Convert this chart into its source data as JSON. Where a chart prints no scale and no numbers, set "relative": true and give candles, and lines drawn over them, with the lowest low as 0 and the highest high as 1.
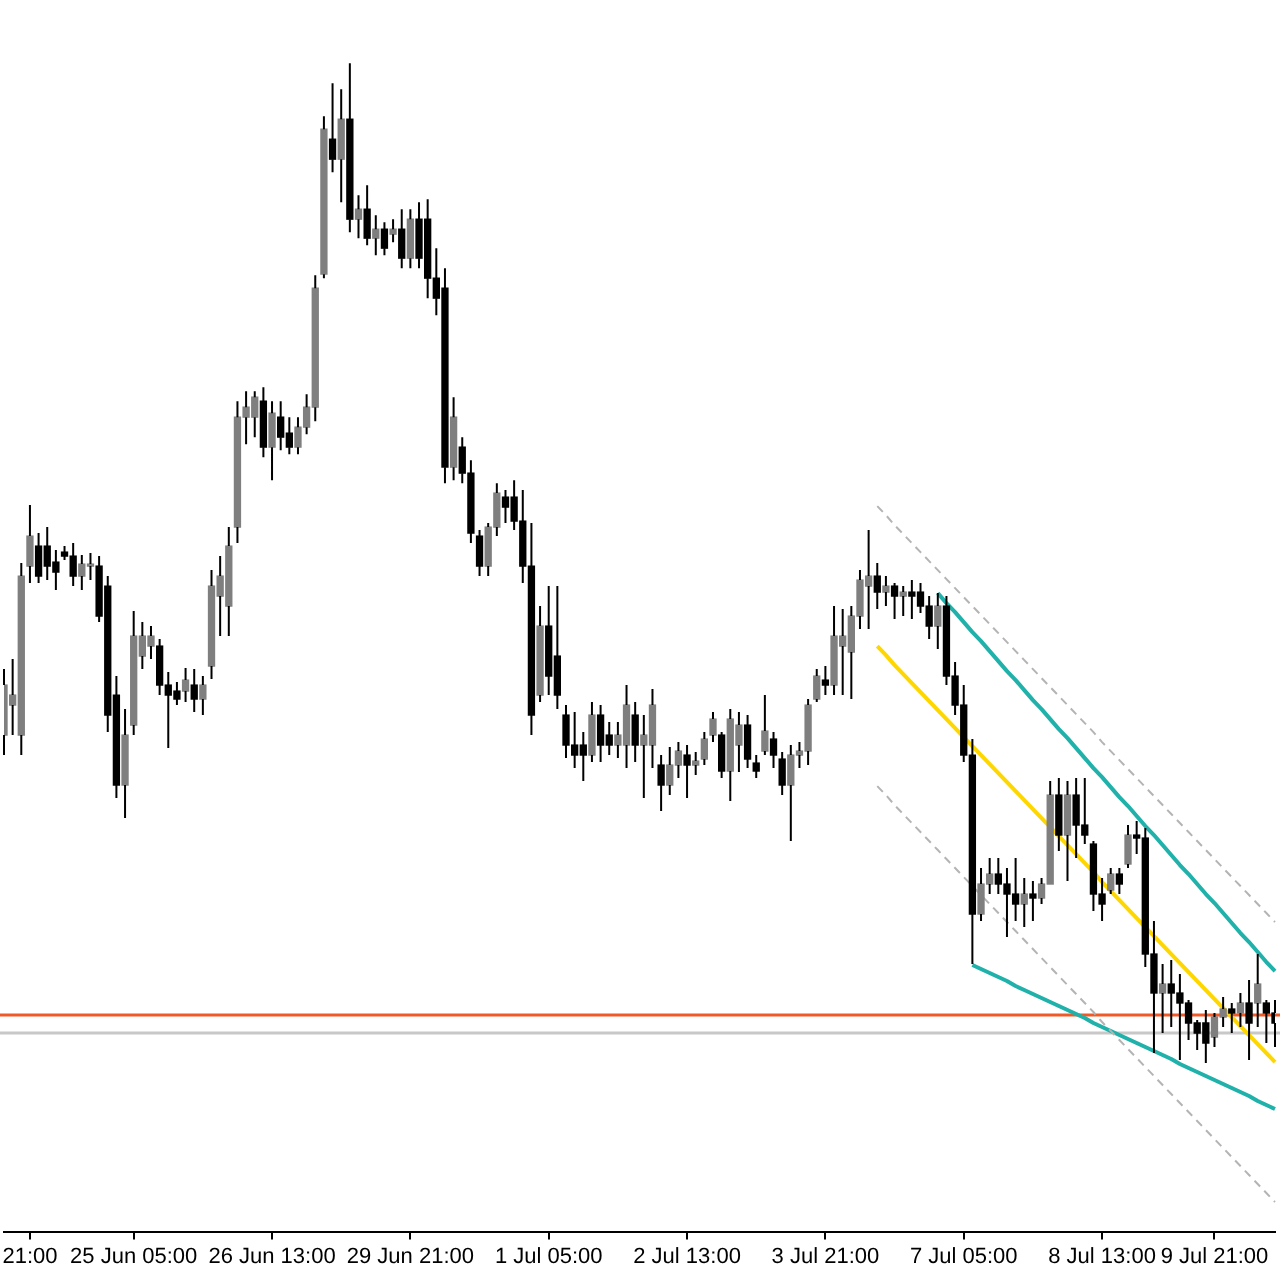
{
  "chart_data": {
    "type": "candlestick",
    "relative": true,
    "color": "#000000",
    "categories": [
      null,
      null,
      null,
      "21:00",
      null,
      null,
      null,
      null,
      null,
      null,
      null,
      null,
      null,
      null,
      null,
      "25 Jun 05:00",
      null,
      null,
      null,
      null,
      null,
      null,
      null,
      null,
      null,
      null,
      null,
      null,
      null,
      null,
      null,
      "26 Jun 13:00",
      null,
      null,
      null,
      null,
      null,
      null,
      null,
      null,
      null,
      null,
      null,
      null,
      null,
      null,
      null,
      "29 Jun 21:00",
      null,
      null,
      null,
      null,
      null,
      null,
      null,
      null,
      null,
      null,
      null,
      null,
      null,
      null,
      null,
      "1 Jul 05:00",
      null,
      null,
      null,
      null,
      null,
      null,
      null,
      null,
      null,
      null,
      null,
      null,
      null,
      null,
      null,
      "2 Jul 13:00",
      null,
      null,
      null,
      null,
      null,
      null,
      null,
      null,
      null,
      null,
      null,
      null,
      null,
      null,
      null,
      "3 Jul 21:00",
      null,
      null,
      null,
      null,
      null,
      null,
      null,
      null,
      null,
      null,
      null,
      null,
      null,
      null,
      null,
      "7 Jul 05:00",
      null,
      null,
      null,
      null,
      null,
      null,
      null,
      null,
      null,
      null,
      null,
      null,
      null,
      null,
      null,
      "8 Jul 13:00",
      null,
      null,
      null,
      null,
      null,
      null,
      null,
      null,
      null,
      null,
      null,
      null,
      "9 Jul 21:00",
      null,
      null,
      null,
      null,
      null,
      null,
      null
    ],
    "ohlc": [
      [
        0.328,
        0.394,
        0.308,
        0.378
      ],
      [
        0.358,
        0.404,
        0.328,
        0.368
      ],
      [
        0.328,
        0.5,
        0.308,
        0.487
      ],
      [
        0.497,
        0.558,
        0.48,
        0.527
      ],
      [
        0.517,
        0.53,
        0.48,
        0.487
      ],
      [
        0.517,
        0.536,
        0.483,
        0.497
      ],
      [
        0.501,
        0.513,
        0.473,
        0.491
      ],
      [
        0.511,
        0.517,
        0.503,
        0.507
      ],
      [
        0.507,
        0.52,
        0.477,
        0.487
      ],
      [
        0.487,
        0.508,
        0.473,
        0.499
      ],
      [
        0.497,
        0.51,
        0.483,
        0.499
      ],
      [
        0.497,
        0.507,
        0.441,
        0.447
      ],
      [
        0.477,
        0.487,
        0.331,
        0.348
      ],
      [
        0.368,
        0.387,
        0.265,
        0.278
      ],
      [
        0.278,
        0.354,
        0.245,
        0.328
      ],
      [
        0.338,
        0.452,
        0.328,
        0.427
      ],
      [
        0.407,
        0.441,
        0.394,
        0.427
      ],
      [
        0.417,
        0.437,
        0.404,
        0.427
      ],
      [
        0.417,
        0.424,
        0.368,
        0.378
      ],
      [
        0.378,
        0.391,
        0.315,
        0.368
      ],
      [
        0.372,
        0.381,
        0.358,
        0.364
      ],
      [
        0.372,
        0.395,
        0.361,
        0.383
      ],
      [
        0.378,
        0.394,
        0.351,
        0.364
      ],
      [
        0.364,
        0.387,
        0.348,
        0.378
      ],
      [
        0.397,
        0.493,
        0.384,
        0.477
      ],
      [
        0.467,
        0.507,
        0.427,
        0.487
      ],
      [
        0.457,
        0.536,
        0.427,
        0.517
      ],
      [
        0.536,
        0.662,
        0.52,
        0.646
      ],
      [
        0.646,
        0.672,
        0.619,
        0.656
      ],
      [
        0.646,
        0.672,
        0.626,
        0.666
      ],
      [
        0.662,
        0.676,
        0.606,
        0.616
      ],
      [
        0.616,
        0.662,
        0.583,
        0.65
      ],
      [
        0.646,
        0.662,
        0.613,
        0.626
      ],
      [
        0.63,
        0.646,
        0.609,
        0.616
      ],
      [
        0.616,
        0.646,
        0.609,
        0.636
      ],
      [
        0.636,
        0.669,
        0.629,
        0.656
      ],
      [
        0.656,
        0.788,
        0.642,
        0.775
      ],
      [
        0.789,
        0.947,
        0.785,
        0.934
      ],
      [
        0.924,
        0.98,
        0.891,
        0.904
      ],
      [
        0.904,
        0.974,
        0.861,
        0.944
      ],
      [
        0.944,
        1.0,
        0.831,
        0.844
      ],
      [
        0.844,
        0.868,
        0.825,
        0.854
      ],
      [
        0.854,
        0.878,
        0.818,
        0.825
      ],
      [
        0.825,
        0.848,
        0.808,
        0.834
      ],
      [
        0.834,
        0.841,
        0.808,
        0.815
      ],
      [
        0.829,
        0.844,
        0.821,
        0.834
      ],
      [
        0.834,
        0.854,
        0.795,
        0.805
      ],
      [
        0.805,
        0.854,
        0.795,
        0.844
      ],
      [
        0.844,
        0.861,
        0.795,
        0.805
      ],
      [
        0.844,
        0.864,
        0.765,
        0.785
      ],
      [
        0.785,
        0.815,
        0.748,
        0.765
      ],
      [
        0.775,
        0.795,
        0.58,
        0.596
      ],
      [
        0.596,
        0.666,
        0.583,
        0.646
      ],
      [
        0.616,
        0.626,
        0.58,
        0.59
      ],
      [
        0.59,
        0.603,
        0.52,
        0.53
      ],
      [
        0.527,
        0.533,
        0.487,
        0.497
      ],
      [
        0.497,
        0.54,
        0.487,
        0.536
      ],
      [
        0.536,
        0.58,
        0.527,
        0.57
      ],
      [
        0.566,
        0.573,
        0.54,
        0.556
      ],
      [
        0.566,
        0.583,
        0.533,
        0.542
      ],
      [
        0.542,
        0.573,
        0.48,
        0.497
      ],
      [
        0.497,
        0.54,
        0.328,
        0.348
      ],
      [
        0.368,
        0.457,
        0.361,
        0.437
      ],
      [
        0.437,
        0.477,
        0.368,
        0.387
      ],
      [
        0.407,
        0.477,
        0.354,
        0.368
      ],
      [
        0.348,
        0.358,
        0.305,
        0.318
      ],
      [
        0.318,
        0.351,
        0.295,
        0.308
      ],
      [
        0.318,
        0.331,
        0.282,
        0.308
      ],
      [
        0.308,
        0.361,
        0.301,
        0.348
      ],
      [
        0.348,
        0.358,
        0.301,
        0.318
      ],
      [
        0.328,
        0.341,
        0.308,
        0.318
      ],
      [
        0.318,
        0.341,
        0.305,
        0.328
      ],
      [
        0.318,
        0.378,
        0.295,
        0.358
      ],
      [
        0.348,
        0.361,
        0.301,
        0.318
      ],
      [
        0.318,
        0.348,
        0.265,
        0.328
      ],
      [
        0.318,
        0.374,
        0.295,
        0.358
      ],
      [
        0.298,
        0.308,
        0.252,
        0.278
      ],
      [
        0.278,
        0.316,
        0.268,
        0.298
      ],
      [
        0.298,
        0.321,
        0.285,
        0.312
      ],
      [
        0.308,
        0.318,
        0.265,
        0.298
      ],
      [
        0.298,
        0.311,
        0.288,
        0.302
      ],
      [
        0.304,
        0.331,
        0.298,
        0.324
      ],
      [
        0.328,
        0.351,
        0.321,
        0.344
      ],
      [
        0.328,
        0.331,
        0.285,
        0.292
      ],
      [
        0.292,
        0.354,
        0.262,
        0.344
      ],
      [
        0.318,
        0.351,
        0.291,
        0.338
      ],
      [
        0.338,
        0.348,
        0.295,
        0.304
      ],
      [
        0.3,
        0.308,
        0.285,
        0.292
      ],
      [
        0.312,
        0.368,
        0.308,
        0.332
      ],
      [
        0.324,
        0.331,
        0.295,
        0.308
      ],
      [
        0.304,
        0.311,
        0.268,
        0.278
      ],
      [
        0.278,
        0.318,
        0.222,
        0.308
      ],
      [
        0.308,
        0.321,
        0.295,
        0.312
      ],
      [
        0.312,
        0.364,
        0.298,
        0.358
      ],
      [
        0.364,
        0.394,
        0.361,
        0.387
      ],
      [
        0.383,
        0.397,
        0.368,
        0.378
      ],
      [
        0.378,
        0.457,
        0.368,
        0.427
      ],
      [
        0.417,
        0.454,
        0.368,
        0.427
      ],
      [
        0.411,
        0.457,
        0.364,
        0.447
      ],
      [
        0.447,
        0.493,
        0.434,
        0.483
      ],
      [
        0.477,
        0.533,
        0.434,
        0.487
      ],
      [
        0.487,
        0.5,
        0.454,
        0.471
      ],
      [
        0.471,
        0.487,
        0.457,
        0.477
      ],
      [
        0.477,
        0.48,
        0.444,
        0.467
      ],
      [
        0.467,
        0.477,
        0.447,
        0.471
      ],
      [
        0.471,
        0.483,
        0.444,
        0.467
      ],
      [
        0.471,
        0.48,
        0.45,
        0.457
      ],
      [
        0.457,
        0.467,
        0.424,
        0.437
      ],
      [
        0.437,
        0.47,
        0.414,
        0.457
      ],
      [
        0.457,
        0.467,
        0.378,
        0.387
      ],
      [
        0.387,
        0.401,
        0.348,
        0.358
      ],
      [
        0.358,
        0.378,
        0.301,
        0.308
      ],
      [
        0.308,
        0.324,
        0.099,
        0.149
      ],
      [
        0.149,
        0.195,
        0.142,
        0.179
      ],
      [
        0.179,
        0.205,
        0.169,
        0.189
      ],
      [
        0.189,
        0.205,
        0.169,
        0.179
      ],
      [
        0.179,
        0.195,
        0.126,
        0.169
      ],
      [
        0.169,
        0.205,
        0.142,
        0.159
      ],
      [
        0.159,
        0.185,
        0.136,
        0.169
      ],
      [
        0.169,
        0.182,
        0.142,
        0.165
      ],
      [
        0.165,
        0.185,
        0.159,
        0.179
      ],
      [
        0.179,
        0.282,
        0.179,
        0.268
      ],
      [
        0.268,
        0.285,
        0.212,
        0.228
      ],
      [
        0.228,
        0.282,
        0.182,
        0.268
      ],
      [
        0.268,
        0.285,
        0.205,
        0.238
      ],
      [
        0.238,
        0.285,
        0.219,
        0.228
      ],
      [
        0.219,
        0.222,
        0.152,
        0.169
      ],
      [
        0.169,
        0.185,
        0.142,
        0.159
      ],
      [
        0.173,
        0.195,
        0.169,
        0.189
      ],
      [
        0.189,
        0.195,
        0.169,
        0.179
      ],
      [
        0.199,
        0.238,
        0.195,
        0.228
      ],
      [
        0.228,
        0.242,
        0.209,
        0.225
      ],
      [
        0.225,
        0.235,
        0.096,
        0.109
      ],
      [
        0.109,
        0.142,
        0.01,
        0.07
      ],
      [
        0.07,
        0.099,
        0.03,
        0.079
      ],
      [
        0.079,
        0.103,
        0.036,
        0.07
      ],
      [
        0.07,
        0.089,
        0.003,
        0.06
      ],
      [
        0.06,
        0.063,
        0.023,
        0.04
      ],
      [
        0.04,
        0.043,
        0.013,
        0.03
      ],
      [
        0.04,
        0.053,
        0.0,
        0.02
      ],
      [
        0.026,
        0.05,
        0.016,
        0.046
      ],
      [
        0.046,
        0.066,
        0.036,
        0.054
      ],
      [
        0.054,
        0.06,
        0.03,
        0.05
      ],
      [
        0.05,
        0.07,
        0.036,
        0.06
      ],
      [
        0.06,
        0.083,
        0.003,
        0.04
      ],
      [
        0.06,
        0.109,
        0.036,
        0.079
      ],
      [
        0.06,
        0.063,
        0.02,
        0.05
      ],
      [
        0.05,
        0.063,
        0.016,
        0.04
      ]
    ],
    "colors": [
      "#7f7f7f",
      "#7f7f7f",
      "#7f7f7f",
      "#7f7f7f",
      "#000000",
      "#000000",
      "#000000",
      "#000000",
      "#000000",
      "#7f7f7f",
      "#7f7f7f",
      "#000000",
      "#000000",
      "#000000",
      "#7f7f7f",
      "#7f7f7f",
      "#7f7f7f",
      "#7f7f7f",
      "#000000",
      "#000000",
      "#000000",
      "#7f7f7f",
      "#000000",
      "#7f7f7f",
      "#7f7f7f",
      "#7f7f7f",
      "#7f7f7f",
      "#7f7f7f",
      "#7f7f7f",
      "#7f7f7f",
      "#000000",
      "#7f7f7f",
      "#000000",
      "#000000",
      "#7f7f7f",
      "#7f7f7f",
      "#7f7f7f",
      "#7f7f7f",
      "#000000",
      "#7f7f7f",
      "#000000",
      "#7f7f7f",
      "#000000",
      "#7f7f7f",
      "#000000",
      "#7f7f7f",
      "#000000",
      "#7f7f7f",
      "#000000",
      "#000000",
      "#000000",
      "#000000",
      "#7f7f7f",
      "#000000",
      "#000000",
      "#000000",
      "#7f7f7f",
      "#7f7f7f",
      "#000000",
      "#000000",
      "#000000",
      "#000000",
      "#7f7f7f",
      "#000000",
      "#000000",
      "#000000",
      "#000000",
      "#000000",
      "#7f7f7f",
      "#000000",
      "#000000",
      "#7f7f7f",
      "#7f7f7f",
      "#000000",
      "#7f7f7f",
      "#7f7f7f",
      "#000000",
      "#7f7f7f",
      "#7f7f7f",
      "#000000",
      "#7f7f7f",
      "#7f7f7f",
      "#7f7f7f",
      "#000000",
      "#7f7f7f",
      "#7f7f7f",
      "#000000",
      "#000000",
      "#7f7f7f",
      "#000000",
      "#000000",
      "#7f7f7f",
      "#7f7f7f",
      "#7f7f7f",
      "#7f7f7f",
      "#000000",
      "#7f7f7f",
      "#7f7f7f",
      "#7f7f7f",
      "#7f7f7f",
      "#7f7f7f",
      "#000000",
      "#7f7f7f",
      "#000000",
      "#7f7f7f",
      "#000000",
      "#000000",
      "#000000",
      "#7f7f7f",
      "#000000",
      "#000000",
      "#000000",
      "#000000",
      "#7f7f7f",
      "#7f7f7f",
      "#000000",
      "#000000",
      "#000000",
      "#7f7f7f",
      "#000000",
      "#7f7f7f",
      "#7f7f7f",
      "#000000",
      "#7f7f7f",
      "#000000",
      "#000000",
      "#000000",
      "#000000",
      "#7f7f7f",
      "#000000",
      "#7f7f7f",
      "#000000",
      "#000000",
      "#000000",
      "#7f7f7f",
      "#000000",
      "#000000",
      "#000000",
      "#000000",
      "#000000",
      "#7f7f7f",
      "#7f7f7f",
      "#000000",
      "#7f7f7f",
      "#000000",
      "#7f7f7f",
      "#000000",
      "#000000"
    ],
    "series": [
      {
        "type": "line",
        "color": "#b4b4b4",
        "line_style": "dashed",
        "values": [
          null,
          null,
          null,
          null,
          null,
          null,
          null,
          null,
          null,
          null,
          null,
          null,
          null,
          null,
          null,
          null,
          null,
          null,
          null,
          null,
          null,
          null,
          null,
          null,
          null,
          null,
          null,
          null,
          null,
          null,
          null,
          null,
          null,
          null,
          null,
          null,
          null,
          null,
          null,
          null,
          null,
          null,
          null,
          null,
          null,
          null,
          null,
          null,
          null,
          null,
          null,
          null,
          null,
          null,
          null,
          null,
          null,
          null,
          null,
          null,
          null,
          null,
          null,
          null,
          null,
          null,
          null,
          null,
          null,
          null,
          null,
          null,
          null,
          null,
          null,
          null,
          null,
          null,
          null,
          null,
          null,
          null,
          null,
          null,
          null,
          null,
          null,
          null,
          null,
          null,
          null,
          null,
          null,
          null,
          null,
          null,
          null,
          null,
          null,
          null,
          null,
          0.557,
          0.548,
          0.538,
          0.529,
          0.52,
          0.511,
          0.502,
          0.493,
          0.484,
          0.475,
          0.466,
          0.457,
          0.448,
          0.439,
          0.43,
          0.421,
          0.412,
          0.403,
          0.394,
          0.385,
          0.376,
          0.367,
          0.358,
          0.349,
          0.34,
          0.331,
          0.321,
          0.312,
          0.303,
          0.294,
          0.285,
          0.276,
          0.267,
          0.258,
          0.249,
          0.24,
          0.231,
          0.222,
          0.213,
          0.204,
          0.195,
          0.186,
          0.177,
          0.168,
          0.159,
          0.15,
          0.141
        ]
      },
      {
        "type": "line",
        "color": "#b4b4b4",
        "line_style": "dashed",
        "values": [
          null,
          null,
          null,
          null,
          null,
          null,
          null,
          null,
          null,
          null,
          null,
          null,
          null,
          null,
          null,
          null,
          null,
          null,
          null,
          null,
          null,
          null,
          null,
          null,
          null,
          null,
          null,
          null,
          null,
          null,
          null,
          null,
          null,
          null,
          null,
          null,
          null,
          null,
          null,
          null,
          null,
          null,
          null,
          null,
          null,
          null,
          null,
          null,
          null,
          null,
          null,
          null,
          null,
          null,
          null,
          null,
          null,
          null,
          null,
          null,
          null,
          null,
          null,
          null,
          null,
          null,
          null,
          null,
          null,
          null,
          null,
          null,
          null,
          null,
          null,
          null,
          null,
          null,
          null,
          null,
          null,
          null,
          null,
          null,
          null,
          null,
          null,
          null,
          null,
          null,
          null,
          null,
          null,
          null,
          null,
          null,
          null,
          null,
          null,
          null,
          null,
          0.277,
          0.268,
          0.258,
          0.249,
          0.24,
          0.231,
          0.222,
          0.213,
          0.204,
          0.195,
          0.186,
          0.177,
          0.168,
          0.159,
          0.15,
          0.141,
          0.132,
          0.123,
          0.114,
          0.105,
          0.096,
          0.087,
          0.078,
          0.069,
          0.06,
          0.051,
          0.041,
          0.032,
          0.023,
          0.014,
          0.005,
          -0.004,
          -0.013,
          -0.022,
          -0.031,
          -0.04,
          -0.049,
          -0.058,
          -0.067,
          -0.076,
          -0.085,
          -0.094,
          -0.103,
          -0.112,
          -0.121,
          -0.13,
          -0.139
        ]
      },
      {
        "type": "line",
        "color": "#ffd700",
        "values": [
          null,
          null,
          null,
          null,
          null,
          null,
          null,
          null,
          null,
          null,
          null,
          null,
          null,
          null,
          null,
          null,
          null,
          null,
          null,
          null,
          null,
          null,
          null,
          null,
          null,
          null,
          null,
          null,
          null,
          null,
          null,
          null,
          null,
          null,
          null,
          null,
          null,
          null,
          null,
          null,
          null,
          null,
          null,
          null,
          null,
          null,
          null,
          null,
          null,
          null,
          null,
          null,
          null,
          null,
          null,
          null,
          null,
          null,
          null,
          null,
          null,
          null,
          null,
          null,
          null,
          null,
          null,
          null,
          null,
          null,
          null,
          null,
          null,
          null,
          null,
          null,
          null,
          null,
          null,
          null,
          null,
          null,
          null,
          null,
          null,
          null,
          null,
          null,
          null,
          null,
          null,
          null,
          null,
          null,
          null,
          null,
          null,
          null,
          null,
          null,
          null,
          0.417,
          0.408,
          0.398,
          0.389,
          0.38,
          0.371,
          0.362,
          0.353,
          0.344,
          0.335,
          0.326,
          0.317,
          0.308,
          0.299,
          0.29,
          0.281,
          0.272,
          0.263,
          0.254,
          0.245,
          0.236,
          0.227,
          0.218,
          0.209,
          0.2,
          0.191,
          0.181,
          0.172,
          0.163,
          0.154,
          0.145,
          0.136,
          0.127,
          0.118,
          0.109,
          0.1,
          0.091,
          0.082,
          0.073,
          0.064,
          0.055,
          0.046,
          0.037,
          0.028,
          0.019,
          0.01,
          0.001
        ]
      },
      {
        "type": "line",
        "color": "#20b2aa",
        "values": [
          null,
          null,
          null,
          null,
          null,
          null,
          null,
          null,
          null,
          null,
          null,
          null,
          null,
          null,
          null,
          null,
          null,
          null,
          null,
          null,
          null,
          null,
          null,
          null,
          null,
          null,
          null,
          null,
          null,
          null,
          null,
          null,
          null,
          null,
          null,
          null,
          null,
          null,
          null,
          null,
          null,
          null,
          null,
          null,
          null,
          null,
          null,
          null,
          null,
          null,
          null,
          null,
          null,
          null,
          null,
          null,
          null,
          null,
          null,
          null,
          null,
          null,
          null,
          null,
          null,
          null,
          null,
          null,
          null,
          null,
          null,
          null,
          null,
          null,
          null,
          null,
          null,
          null,
          null,
          null,
          null,
          null,
          null,
          null,
          null,
          null,
          null,
          null,
          null,
          null,
          null,
          null,
          null,
          null,
          null,
          null,
          null,
          null,
          null,
          null,
          null,
          null,
          null,
          null,
          null,
          null,
          null,
          null,
          0.47,
          0.46,
          0.451,
          0.441,
          0.431,
          0.422,
          0.412,
          0.402,
          0.392,
          0.383,
          0.373,
          0.363,
          0.354,
          0.344,
          0.334,
          0.325,
          0.315,
          0.305,
          0.295,
          0.286,
          0.276,
          0.266,
          0.257,
          0.247,
          0.237,
          0.228,
          0.218,
          0.208,
          0.198,
          0.189,
          0.179,
          0.169,
          0.16,
          0.15,
          0.14,
          0.13,
          0.121,
          0.111,
          0.101,
          0.092
        ]
      },
      {
        "type": "line",
        "color": "#20b2aa",
        "values": [
          null,
          null,
          null,
          null,
          null,
          null,
          null,
          null,
          null,
          null,
          null,
          null,
          null,
          null,
          null,
          null,
          null,
          null,
          null,
          null,
          null,
          null,
          null,
          null,
          null,
          null,
          null,
          null,
          null,
          null,
          null,
          null,
          null,
          null,
          null,
          null,
          null,
          null,
          null,
          null,
          null,
          null,
          null,
          null,
          null,
          null,
          null,
          null,
          null,
          null,
          null,
          null,
          null,
          null,
          null,
          null,
          null,
          null,
          null,
          null,
          null,
          null,
          null,
          null,
          null,
          null,
          null,
          null,
          null,
          null,
          null,
          null,
          null,
          null,
          null,
          null,
          null,
          null,
          null,
          null,
          null,
          null,
          null,
          null,
          null,
          null,
          null,
          null,
          null,
          null,
          null,
          null,
          null,
          null,
          null,
          null,
          null,
          null,
          null,
          null,
          null,
          null,
          null,
          null,
          null,
          null,
          null,
          null,
          null,
          null,
          null,
          null,
          0.098,
          0.094,
          0.09,
          0.086,
          0.082,
          0.077,
          0.073,
          0.069,
          0.065,
          0.061,
          0.057,
          0.053,
          0.049,
          0.045,
          0.04,
          0.036,
          0.032,
          0.028,
          0.024,
          0.02,
          0.016,
          0.012,
          0.008,
          0.004,
          -0.001,
          -0.005,
          -0.009,
          -0.013,
          -0.017,
          -0.021,
          -0.025,
          -0.029,
          -0.033,
          -0.038,
          -0.042,
          -0.046
        ]
      }
    ],
    "ref_lines": [
      {
        "axis": "y",
        "value": 0.048,
        "color": "#f05a28"
      },
      {
        "axis": "y",
        "value": 0.03,
        "color": "#c8c8c8"
      }
    ]
  }
}
